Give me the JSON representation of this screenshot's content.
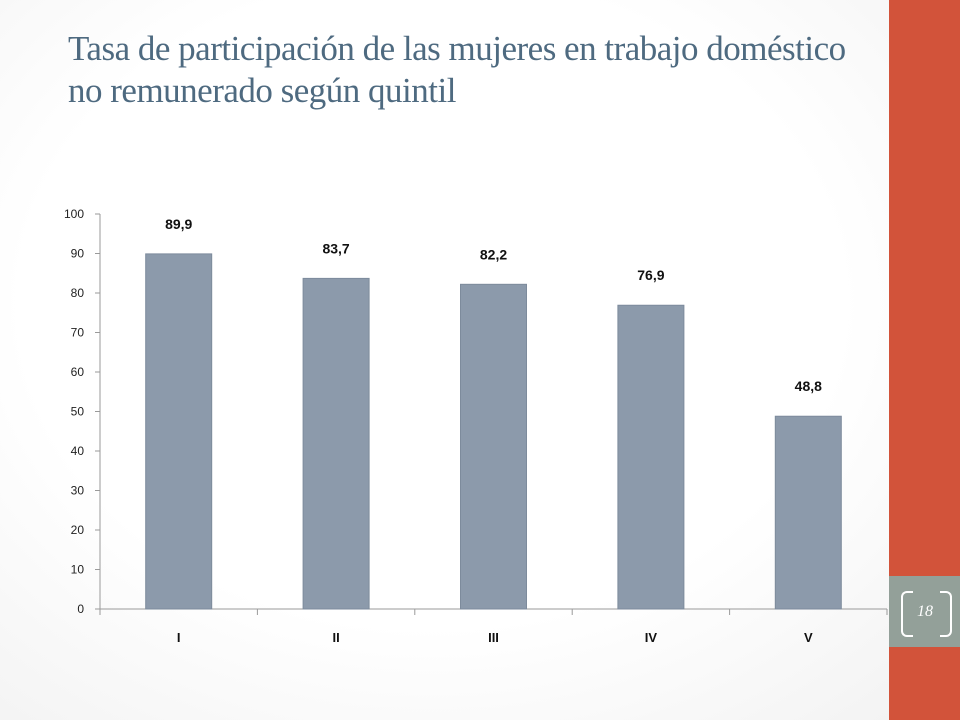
{
  "slide": {
    "title": "Tasa de participación de las mujeres en trabajo doméstico no remunerado según quintil",
    "page_number": "18",
    "colors": {
      "accent": "#d2533a",
      "band": "#93a099",
      "title": "#4e6a80",
      "bar": "#8c9aab"
    }
  },
  "chart_data": {
    "type": "bar",
    "title": "",
    "xlabel": "",
    "ylabel": "",
    "categories": [
      "I",
      "II",
      "III",
      "IV",
      "V"
    ],
    "values": [
      89.9,
      83.7,
      82.2,
      76.9,
      48.8
    ],
    "data_labels": [
      "89,9",
      "83,7",
      "82,2",
      "76,9",
      "48,8"
    ],
    "y_ticks": [
      "0",
      "10",
      "20",
      "30",
      "40",
      "50",
      "60",
      "70",
      "80",
      "90",
      "100"
    ],
    "ylim": [
      0,
      100
    ],
    "grid": false,
    "legend": "none",
    "bar_color": "#8c9aab"
  }
}
